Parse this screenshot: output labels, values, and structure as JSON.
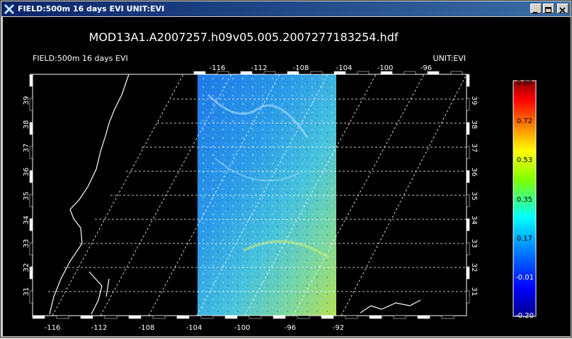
{
  "window": {
    "title": "FIELD:500m 16 days EVI  UNIT:EVI"
  },
  "plot": {
    "filename": "MOD13A1.A2007257.h09v05.005.2007277183254.hdf",
    "field_label": "FIELD:500m 16 days EVI",
    "unit_label": "UNIT:EVI",
    "x_top_ticks": [
      "-116",
      "-112",
      "-108",
      "-104",
      "-100",
      "-96"
    ],
    "x_bottom_ticks": [
      "-116",
      "-112",
      "-108",
      "-104",
      "-100",
      "-96",
      "-92"
    ],
    "y_ticks": [
      "31",
      "32",
      "33",
      "34",
      "35",
      "36",
      "37",
      "38",
      "39"
    ]
  },
  "colorbar": {
    "labels": [
      "0.90",
      "0.72",
      "0.53",
      "0.35",
      "0.17",
      "-0.01",
      "-0.20"
    ],
    "colors": [
      "#8b0000",
      "#ff0000",
      "#ff8c00",
      "#ffff00",
      "#7fff00",
      "#00ffff",
      "#0080ff",
      "#0000ff",
      "#00008b"
    ]
  },
  "colors": {
    "background": "#000000",
    "foreground": "#ffffff",
    "titlebar_start": "#0a246a",
    "titlebar_end": "#3a6ea5",
    "data_low": "#1e64e6",
    "data_mid": "#4cc8e0",
    "data_high": "#a8e05a"
  }
}
